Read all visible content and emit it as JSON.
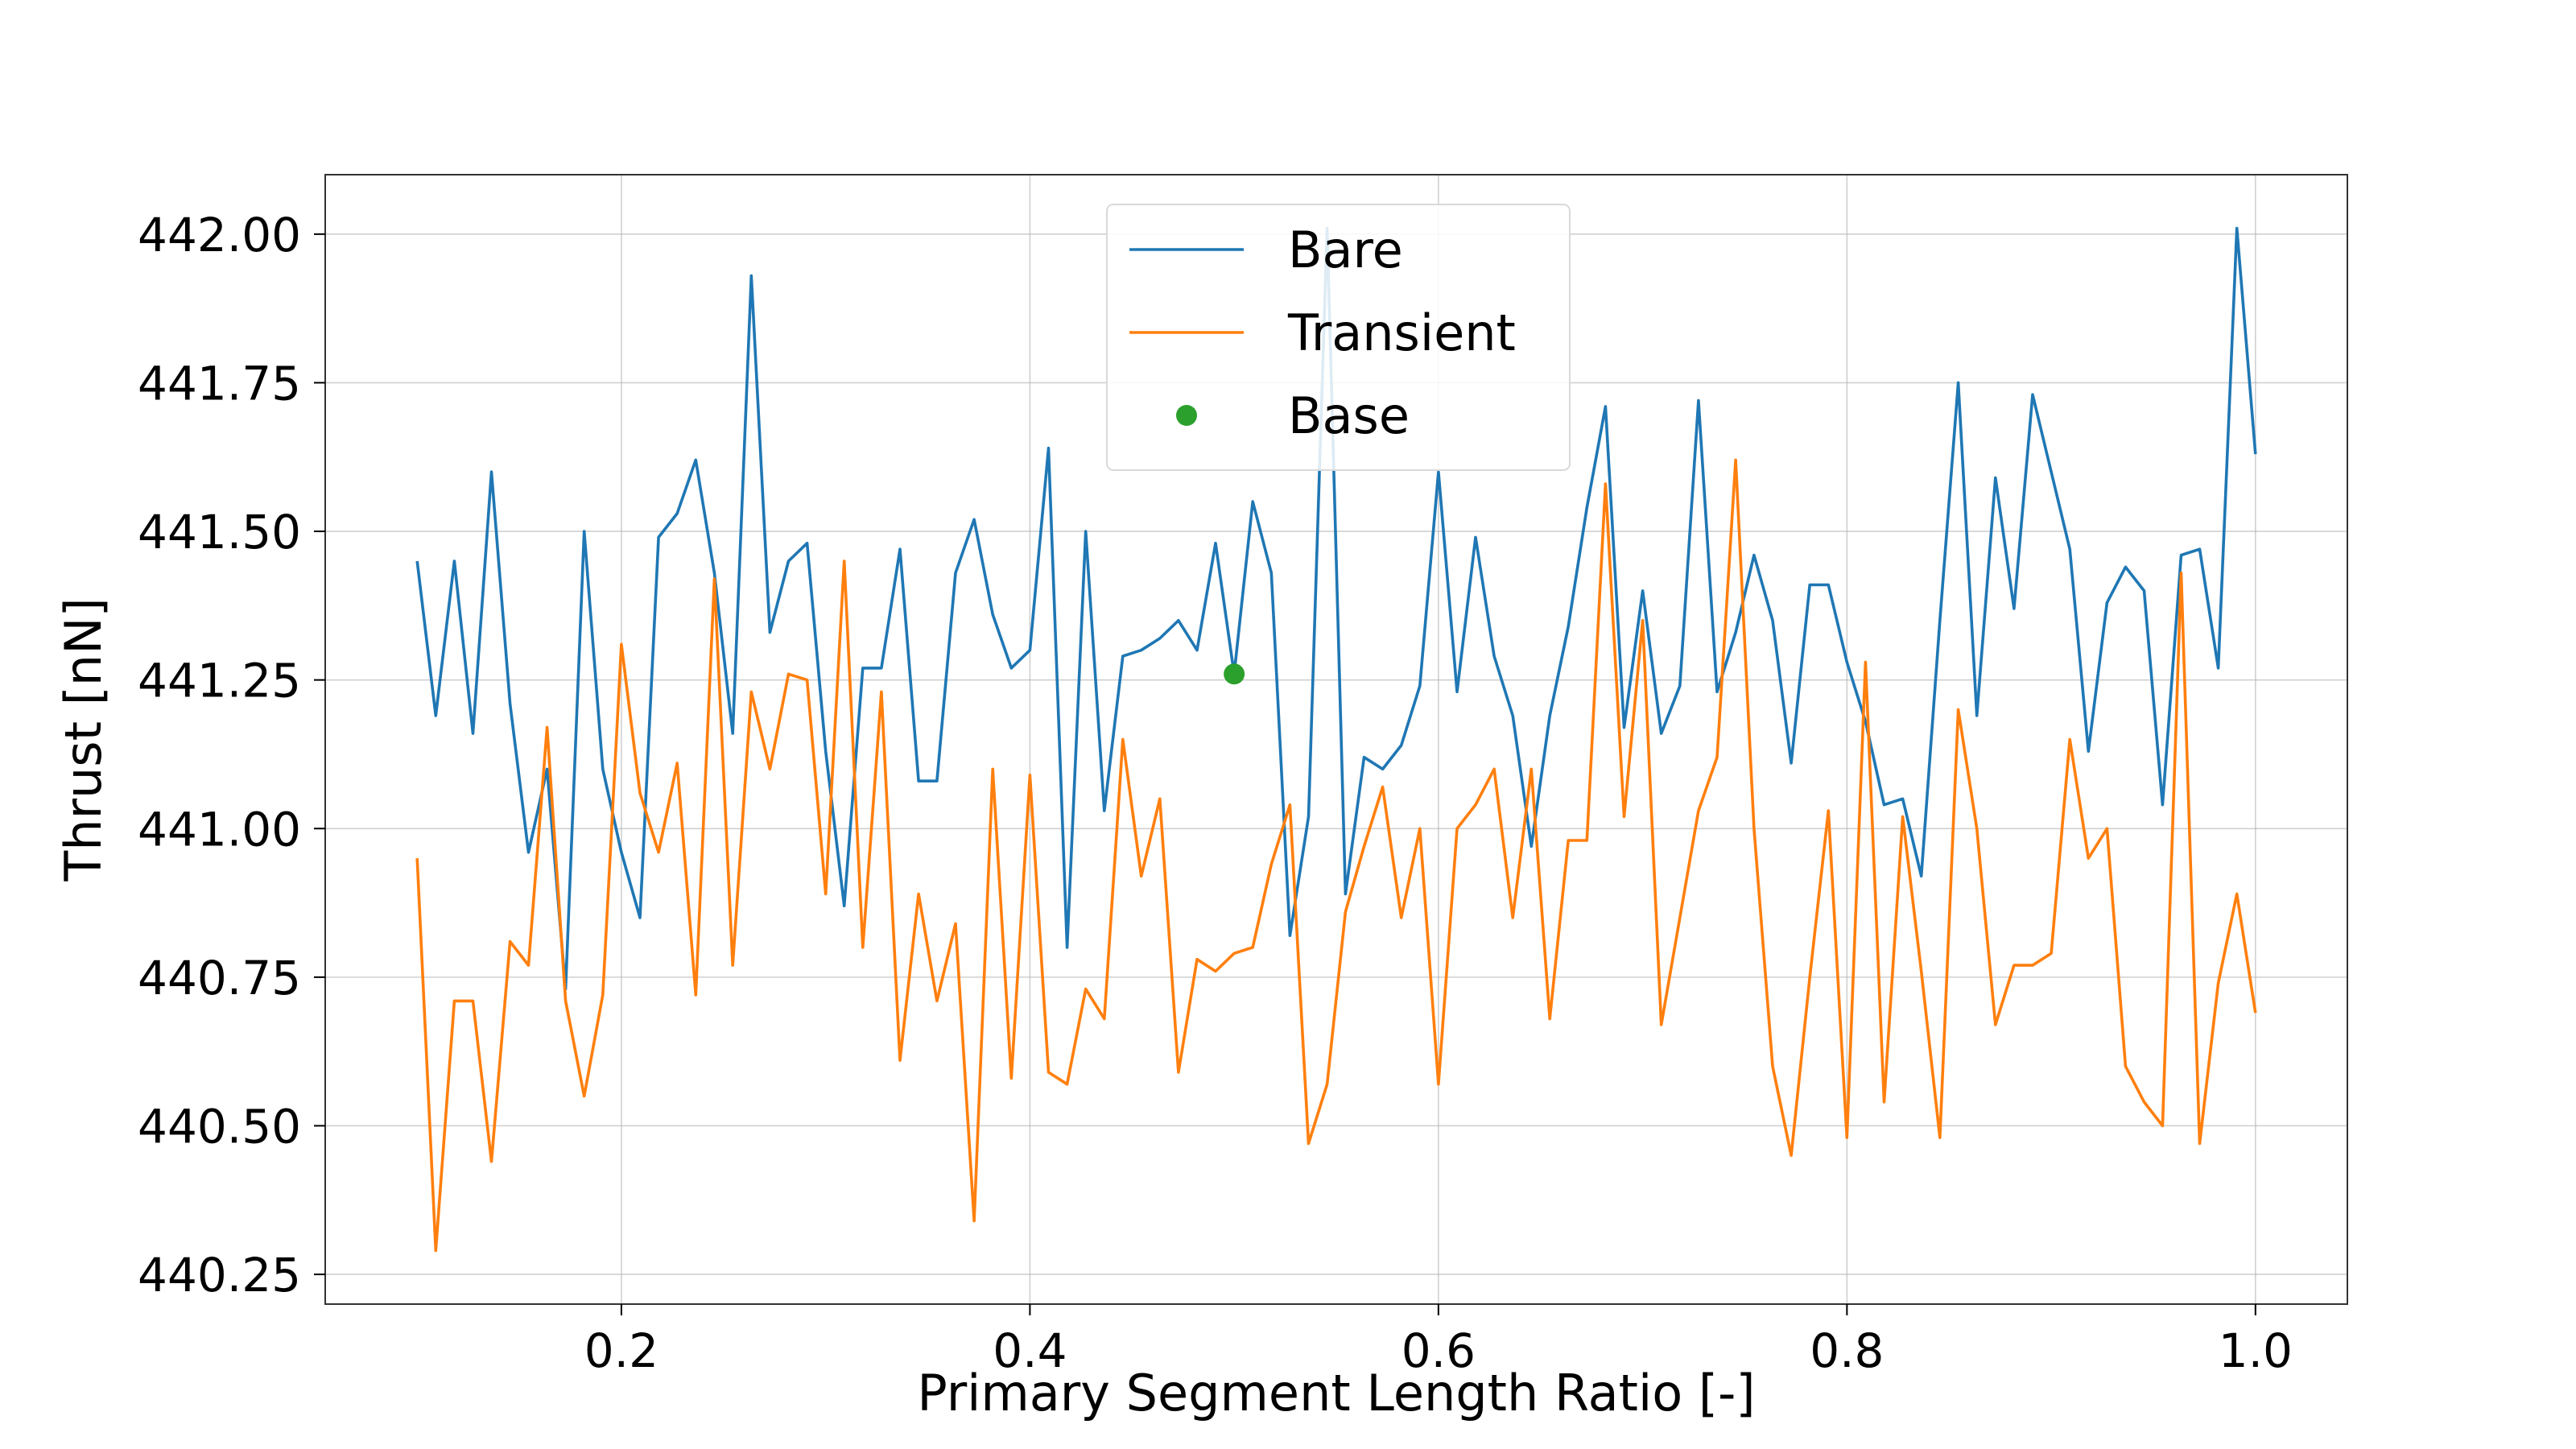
{
  "chart_data": {
    "type": "line",
    "xlabel": "Primary Segment Length Ratio [-]",
    "ylabel": "Thrust [nN]",
    "xlim": [
      0.055,
      1.045
    ],
    "ylim": [
      440.2,
      442.1
    ],
    "xticks": [
      0.2,
      0.4,
      0.6,
      0.8,
      1.0
    ],
    "xtick_labels": [
      "0.2",
      "0.4",
      "0.6",
      "0.8",
      "1.0"
    ],
    "yticks": [
      440.25,
      440.5,
      440.75,
      441.0,
      441.25,
      441.5,
      441.75,
      442.0
    ],
    "ytick_labels": [
      "440.25",
      "440.50",
      "440.75",
      "441.00",
      "441.25",
      "441.50",
      "441.75",
      "442.00"
    ],
    "grid": true,
    "legend": "upper center",
    "x": [
      0.1,
      0.1091,
      0.1182,
      0.1273,
      0.1364,
      0.1455,
      0.1545,
      0.1636,
      0.1727,
      0.1818,
      0.1909,
      0.2,
      0.2091,
      0.2182,
      0.2273,
      0.2364,
      0.2455,
      0.2545,
      0.2636,
      0.2727,
      0.2818,
      0.2909,
      0.3,
      0.3091,
      0.3182,
      0.3273,
      0.3364,
      0.3455,
      0.3545,
      0.3636,
      0.3727,
      0.3818,
      0.3909,
      0.4,
      0.4091,
      0.4182,
      0.4273,
      0.4364,
      0.4455,
      0.4545,
      0.4636,
      0.4727,
      0.4818,
      0.4909,
      0.5,
      0.5091,
      0.5182,
      0.5273,
      0.5364,
      0.5455,
      0.5545,
      0.5636,
      0.5727,
      0.5818,
      0.5909,
      0.6,
      0.6091,
      0.6182,
      0.6273,
      0.6364,
      0.6455,
      0.6545,
      0.6636,
      0.6727,
      0.6818,
      0.6909,
      0.7,
      0.7091,
      0.7182,
      0.7273,
      0.7364,
      0.7455,
      0.7545,
      0.7636,
      0.7727,
      0.7818,
      0.7909,
      0.8,
      0.8091,
      0.8182,
      0.8273,
      0.8364,
      0.8455,
      0.8545,
      0.8636,
      0.8727,
      0.8818,
      0.8909,
      0.9,
      0.9091,
      0.9182,
      0.9273,
      0.9364,
      0.9455,
      0.9545,
      0.9636,
      0.9727,
      0.9818,
      0.9909,
      1.0
    ],
    "series": [
      {
        "name": "Bare",
        "color": "#1f77b4",
        "style": "line",
        "values": [
          441.45,
          441.19,
          441.45,
          441.16,
          441.6,
          441.21,
          440.96,
          441.1,
          440.73,
          441.5,
          441.1,
          440.96,
          440.85,
          441.49,
          441.53,
          441.62,
          441.43,
          441.16,
          441.93,
          441.33,
          441.45,
          441.48,
          441.13,
          440.87,
          441.27,
          441.27,
          441.47,
          441.08,
          441.08,
          441.43,
          441.52,
          441.36,
          441.27,
          441.3,
          441.64,
          440.8,
          441.5,
          441.03,
          441.29,
          441.3,
          441.32,
          441.35,
          441.3,
          441.48,
          441.26,
          441.55,
          441.43,
          440.82,
          441.02,
          442.01,
          440.89,
          441.12,
          441.1,
          441.14,
          441.24,
          441.6,
          441.23,
          441.49,
          441.29,
          441.19,
          440.97,
          441.19,
          441.34,
          441.54,
          441.71,
          441.17,
          441.4,
          441.16,
          441.24,
          441.72,
          441.23,
          441.33,
          441.46,
          441.35,
          441.11,
          441.41,
          441.41,
          441.28,
          441.18,
          441.04,
          441.05,
          440.92,
          441.35,
          441.75,
          441.19,
          441.59,
          441.37,
          441.73,
          441.6,
          441.47,
          441.13,
          441.38,
          441.44,
          441.4,
          441.04,
          441.46,
          441.47,
          441.27,
          442.01,
          441.63
        ]
      },
      {
        "name": "Transient",
        "color": "#ff7f0e",
        "style": "line",
        "values": [
          440.95,
          440.29,
          440.71,
          440.71,
          440.44,
          440.81,
          440.77,
          441.17,
          440.71,
          440.55,
          440.72,
          441.31,
          441.06,
          440.96,
          441.11,
          440.72,
          441.42,
          440.77,
          441.23,
          441.1,
          441.26,
          441.25,
          440.89,
          441.45,
          440.8,
          441.23,
          440.61,
          440.89,
          440.71,
          440.84,
          440.34,
          441.1,
          440.58,
          441.09,
          440.59,
          440.57,
          440.73,
          440.68,
          441.15,
          440.92,
          441.05,
          440.59,
          440.78,
          440.76,
          440.79,
          440.8,
          440.94,
          441.04,
          440.47,
          440.57,
          440.86,
          440.97,
          441.07,
          440.85,
          441.0,
          440.57,
          441.0,
          441.04,
          441.1,
          440.85,
          441.1,
          440.68,
          440.98,
          440.98,
          441.58,
          441.02,
          441.35,
          440.67,
          440.85,
          441.03,
          441.12,
          441.62,
          441.0,
          440.6,
          440.45,
          440.75,
          441.03,
          440.48,
          441.28,
          440.54,
          441.02,
          440.76,
          440.48,
          441.2,
          441.0,
          440.67,
          440.77,
          440.77,
          440.79,
          441.15,
          440.95,
          441.0,
          440.6,
          440.54,
          440.5,
          441.43,
          440.47,
          440.74,
          440.89,
          440.69
        ]
      },
      {
        "name": "Base",
        "color": "#2ca02c",
        "style": "marker",
        "points": [
          [
            0.5,
            441.26
          ]
        ]
      }
    ]
  }
}
